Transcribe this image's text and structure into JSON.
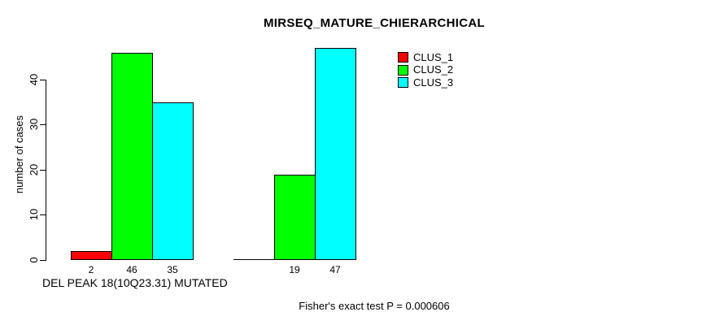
{
  "chart_data": {
    "type": "bar",
    "title": "MIRSEQ_MATURE_CHIERARCHICAL",
    "ylabel": "number of cases",
    "xlabel": "DEL PEAK 18(10Q23.31) MUTATED",
    "annotation": "Fisher's exact test P = 0.000606",
    "ylim": [
      0,
      48
    ],
    "yticks": [
      0,
      10,
      20,
      30,
      40
    ],
    "grid": false,
    "legend_position": "top-right",
    "categories": [
      "DEL PEAK 18(10Q23.31) MUTATED",
      ""
    ],
    "series": [
      {
        "name": "CLUS_1",
        "color": "#ff0000",
        "values": [
          2,
          0
        ],
        "value_labels": [
          "2",
          ""
        ]
      },
      {
        "name": "CLUS_2",
        "color": "#00ff00",
        "values": [
          46,
          19
        ],
        "value_labels": [
          "46",
          "19"
        ]
      },
      {
        "name": "CLUS_3",
        "color": "#00ffff",
        "values": [
          35,
          47
        ],
        "value_labels": [
          "35",
          "47"
        ]
      }
    ]
  }
}
